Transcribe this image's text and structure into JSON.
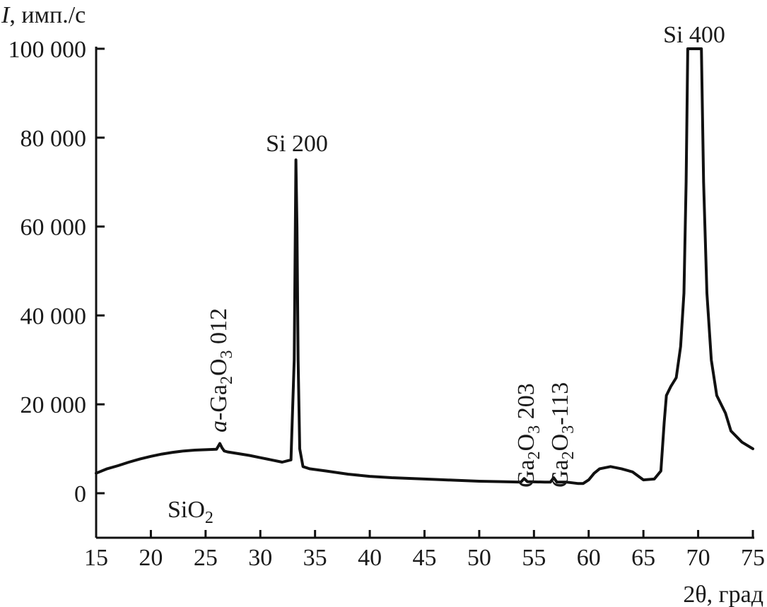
{
  "chart_data": {
    "type": "line",
    "xlabel": "2θ, град",
    "ylabel_var": "I",
    "ylabel_unit": ", имп./с",
    "xlim": [
      15,
      75
    ],
    "ylim": [
      -10000,
      100000
    ],
    "x_ticks": [
      15,
      20,
      25,
      30,
      35,
      40,
      45,
      50,
      55,
      60,
      65,
      70,
      75
    ],
    "y_ticks": [
      0,
      20000,
      40000,
      60000,
      80000,
      100000
    ],
    "y_tick_labels": [
      "0",
      "20 000",
      "40 000",
      "60 000",
      "80 000",
      "100 000"
    ],
    "grid": false,
    "series": [
      {
        "x": [
          15,
          16,
          17,
          18,
          19,
          20,
          21,
          22,
          23,
          24,
          25,
          26,
          26.3,
          26.5,
          26.7,
          27,
          28,
          29,
          30,
          31,
          32,
          32.8,
          33.1,
          33.25,
          33.35,
          33.45,
          33.6,
          33.9,
          34.5,
          36,
          38,
          40,
          42,
          44,
          46,
          48,
          50,
          52,
          53.8,
          54.1,
          54.4,
          56,
          56.5,
          56.8,
          57.1,
          58,
          59,
          59.5,
          60,
          60.5,
          61,
          62,
          63,
          64,
          65,
          66,
          66.6,
          66.9,
          67.1,
          67.5,
          68,
          68.4,
          68.7,
          68.9,
          69.05,
          69.15,
          70.2,
          70.3,
          70.5,
          70.8,
          71.2,
          71.7,
          72.5,
          73,
          74,
          75
        ],
        "y": [
          4500,
          5500,
          6200,
          7000,
          7700,
          8300,
          8800,
          9200,
          9500,
          9700,
          9800,
          9900,
          11200,
          10200,
          9500,
          9300,
          8900,
          8500,
          8000,
          7500,
          7000,
          7500,
          30000,
          75000,
          60000,
          30000,
          10000,
          6000,
          5500,
          5000,
          4300,
          3800,
          3500,
          3300,
          3100,
          2900,
          2700,
          2600,
          2500,
          3300,
          2600,
          2500,
          2500,
          3500,
          2500,
          2500,
          2200,
          2200,
          3000,
          4500,
          5500,
          6000,
          5500,
          4800,
          3000,
          3200,
          5000,
          16000,
          22000,
          24000,
          26000,
          33000,
          45000,
          70000,
          100000,
          100000,
          100000,
          100000,
          70000,
          45000,
          30000,
          22000,
          18000,
          14000,
          11500,
          10000
        ]
      }
    ],
    "annotations": [
      {
        "text": "Si 200"
      },
      {
        "text": "Si 400"
      },
      {
        "prefix": "a",
        "text": "-Ga",
        "sub1": "2",
        "mid": "O",
        "sub2": "3",
        "tail": " 012"
      },
      {
        "text": "Ga",
        "sub1": "2",
        "mid": "O",
        "sub2": "3",
        "tail": " 203"
      },
      {
        "text": "Ga",
        "sub1": "2",
        "mid": "O",
        "sub2": "3",
        "tail": "-113"
      },
      {
        "text": "SiO",
        "sub1": "2"
      }
    ]
  }
}
